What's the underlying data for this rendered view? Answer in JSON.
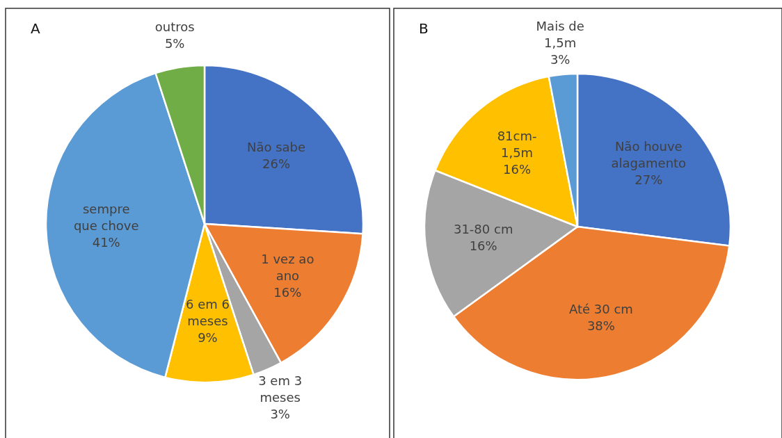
{
  "chart_data": [
    {
      "type": "pie",
      "title": "A",
      "categories": [
        "Não sabe",
        "1 vez ao ano",
        "3 em 3 meses",
        "6 em 6 meses",
        "sempre que chove",
        "outros"
      ],
      "values": [
        26,
        16,
        3,
        9,
        41,
        5
      ],
      "colors": [
        "#4472c4",
        "#ed7d31",
        "#a5a5a5",
        "#ffc000",
        "#5b9bd5",
        "#70ad47"
      ],
      "value_labels": [
        "26%",
        "16%",
        "3%",
        "9%",
        "41%",
        "5%"
      ]
    },
    {
      "type": "pie",
      "title": "B",
      "categories": [
        "Não houve alagamento",
        "Até 30 cm",
        "31-80 cm",
        "81cm-1,5m",
        "Mais de 1,5m"
      ],
      "values": [
        27,
        38,
        16,
        16,
        3
      ],
      "colors": [
        "#4472c4",
        "#ed7d31",
        "#a5a5a5",
        "#ffc000",
        "#5b9bd5"
      ],
      "value_labels": [
        "27%",
        "38%",
        "16%",
        "16%",
        "3%"
      ]
    }
  ]
}
